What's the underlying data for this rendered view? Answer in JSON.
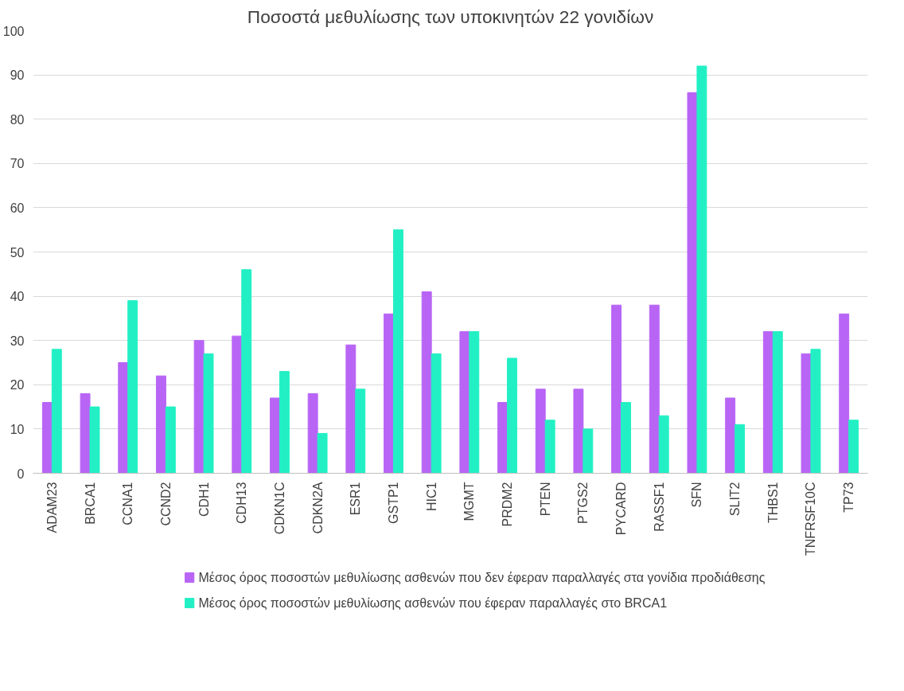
{
  "chart_data": {
    "type": "bar",
    "title": "Ποσοστά μεθυλίωσης των υποκινητών 22 γονιδίων",
    "categories": [
      "ADAM23",
      "BRCA1",
      "CCNA1",
      "CCND2",
      "CDH1",
      "CDH13",
      "CDKN1C",
      "CDKN2A",
      "ESR1",
      "GSTP1",
      "HIC1",
      "MGMT",
      "PRDM2",
      "PTEN",
      "PTGS2",
      "PYCARD",
      "RASSF1",
      "SFN",
      "SLIT2",
      "THBS1",
      "TNFRSF10C",
      "TP73"
    ],
    "series": [
      {
        "name": "Μέσος όρος ποσοστών μεθυλίωσης ασθενών που δεν έφεραν παραλλαγές στα γονίδια προδιάθεσης",
        "color": "#b865f5",
        "values": [
          16,
          18,
          25,
          22,
          30,
          31,
          17,
          18,
          29,
          36,
          41,
          32,
          16,
          19,
          19,
          38,
          38,
          86,
          17,
          32,
          27,
          36
        ]
      },
      {
        "name": "Μέσος όρος ποσοστών μεθυλίωσης ασθενών που έφεραν παραλλαγές στο BRCA1",
        "color": "#22f0c4",
        "values": [
          28,
          15,
          39,
          15,
          27,
          46,
          23,
          9,
          19,
          55,
          27,
          32,
          26,
          12,
          10,
          16,
          13,
          92,
          11,
          32,
          28,
          12
        ]
      }
    ],
    "ylim": [
      0,
      100
    ],
    "yticks": [
      0,
      10,
      20,
      30,
      40,
      50,
      60,
      70,
      80,
      90,
      100
    ],
    "grid": "y",
    "legend": "bottom"
  }
}
